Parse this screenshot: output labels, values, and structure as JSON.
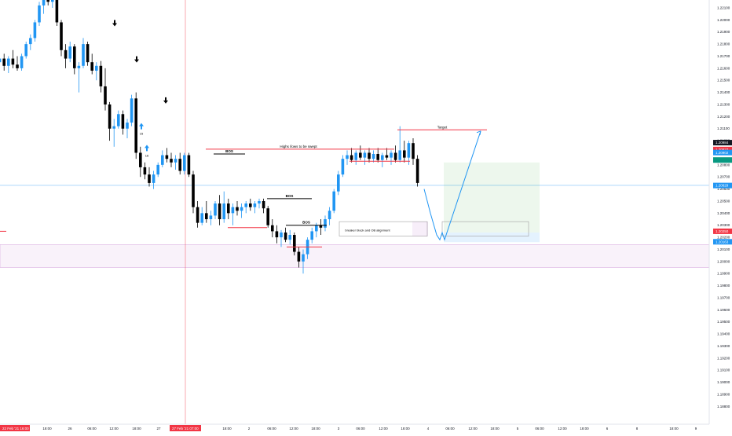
{
  "colors": {
    "up": "#2196f3",
    "down": "#000000",
    "red_line": "#f23645",
    "target_zone": "#4caf50",
    "blue_arrow": "#2196f3",
    "purple_zone": "#9c27b0",
    "blue_hline": "#2196f3",
    "price_tag_red": "#f23645",
    "price_tag_blue": "#2196f3",
    "price_tag_green": "#089981",
    "price_tag_black": "#131722",
    "axis_text": "#131722"
  },
  "chart_data": {
    "type": "candlestick",
    "instrument_note": "",
    "ylim": [
      1.1875,
      1.221
    ],
    "y_ticks": [
      "1.22100",
      "1.22000",
      "1.21900",
      "1.21800",
      "1.21700",
      "1.21600",
      "1.21500",
      "1.21400",
      "1.21300",
      "1.21200",
      "1.21100",
      "1.21000",
      "1.20900",
      "1.20800",
      "1.20700",
      "1.20600",
      "1.20500",
      "1.20400",
      "1.20300",
      "1.20200",
      "1.20100",
      "1.20000",
      "1.19900",
      "1.19800",
      "1.19700",
      "1.19600",
      "1.19500",
      "1.19400",
      "1.19300",
      "1.19200",
      "1.19100",
      "1.19000",
      "1.18900",
      "1.18800"
    ],
    "x_ticks": [
      "22 Feb '21",
      "18:00",
      "26",
      "06:00",
      "12:00",
      "18:00",
      "27",
      "27 Feb '21",
      "18:00",
      "2",
      "06:00",
      "12:00",
      "18:00",
      "3",
      "06:00",
      "12:00",
      "18:00",
      "4",
      "06:00",
      "12:00",
      "18:00",
      "5",
      "06:00",
      "12:00",
      "18:00",
      "6",
      "8",
      "18:00",
      "9"
    ],
    "x_tick_highlight_left": "22 Feb '21",
    "x_tick_highlight_left_time": "16:00",
    "x_tick_highlight_mid": "27 Feb '21",
    "x_tick_highlight_mid_time": "07:00",
    "price_tags": [
      {
        "value": 1.20984,
        "label": "1.20984",
        "color": "black"
      },
      {
        "value": 1.20927,
        "label": "1.20927",
        "color": "red"
      },
      {
        "value": 1.20902,
        "label": "1.20902",
        "color": "blue"
      },
      {
        "value": 1.2084,
        "label": "",
        "color": "green"
      },
      {
        "value": 1.20629,
        "label": "1.20629",
        "color": "blue"
      },
      {
        "value": 1.2025,
        "label": "1.20250",
        "color": "red"
      },
      {
        "value": 1.20163,
        "label": "1.20163",
        "color": "blue"
      }
    ],
    "candles": [
      {
        "o": 1.2155,
        "h": 1.217,
        "l": 1.2145,
        "c": 1.2165
      },
      {
        "o": 1.2165,
        "h": 1.2172,
        "l": 1.216,
        "c": 1.2168
      },
      {
        "o": 1.2168,
        "h": 1.2172,
        "l": 1.2158,
        "c": 1.2162
      },
      {
        "o": 1.2162,
        "h": 1.217,
        "l": 1.2156,
        "c": 1.2168
      },
      {
        "o": 1.2168,
        "h": 1.2175,
        "l": 1.216,
        "c": 1.2163
      },
      {
        "o": 1.2163,
        "h": 1.217,
        "l": 1.2158,
        "c": 1.216
      },
      {
        "o": 1.216,
        "h": 1.2172,
        "l": 1.2158,
        "c": 1.217
      },
      {
        "o": 1.217,
        "h": 1.2182,
        "l": 1.2168,
        "c": 1.218
      },
      {
        "o": 1.218,
        "h": 1.2188,
        "l": 1.2175,
        "c": 1.2185
      },
      {
        "o": 1.2185,
        "h": 1.22,
        "l": 1.2182,
        "c": 1.2198
      },
      {
        "o": 1.2198,
        "h": 1.2215,
        "l": 1.2195,
        "c": 1.2212
      },
      {
        "o": 1.2212,
        "h": 1.2222,
        "l": 1.2205,
        "c": 1.222
      },
      {
        "o": 1.222,
        "h": 1.2228,
        "l": 1.2212,
        "c": 1.2215
      },
      {
        "o": 1.2215,
        "h": 1.2226,
        "l": 1.221,
        "c": 1.2224
      },
      {
        "o": 1.2224,
        "h": 1.2228,
        "l": 1.2195,
        "c": 1.2198
      },
      {
        "o": 1.2198,
        "h": 1.22,
        "l": 1.217,
        "c": 1.2175
      },
      {
        "o": 1.2175,
        "h": 1.218,
        "l": 1.216,
        "c": 1.2168
      },
      {
        "o": 1.2168,
        "h": 1.2182,
        "l": 1.2165,
        "c": 1.2178
      },
      {
        "o": 1.2178,
        "h": 1.218,
        "l": 1.2155,
        "c": 1.216
      },
      {
        "o": 1.216,
        "h": 1.2165,
        "l": 1.214,
        "c": 1.2162
      },
      {
        "o": 1.2162,
        "h": 1.2185,
        "l": 1.216,
        "c": 1.218
      },
      {
        "o": 1.218,
        "h": 1.2182,
        "l": 1.2162,
        "c": 1.2165
      },
      {
        "o": 1.2165,
        "h": 1.2172,
        "l": 1.2155,
        "c": 1.2158
      },
      {
        "o": 1.2158,
        "h": 1.2165,
        "l": 1.215,
        "c": 1.2162
      },
      {
        "o": 1.2162,
        "h": 1.2166,
        "l": 1.214,
        "c": 1.2145
      },
      {
        "o": 1.2145,
        "h": 1.216,
        "l": 1.2125,
        "c": 1.213
      },
      {
        "o": 1.213,
        "h": 1.2132,
        "l": 1.21,
        "c": 1.211
      },
      {
        "o": 1.211,
        "h": 1.2118,
        "l": 1.2095,
        "c": 1.2112
      },
      {
        "o": 1.2112,
        "h": 1.2125,
        "l": 1.211,
        "c": 1.2122
      },
      {
        "o": 1.2122,
        "h": 1.2125,
        "l": 1.2105,
        "c": 1.211
      },
      {
        "o": 1.211,
        "h": 1.2118,
        "l": 1.2102,
        "c": 1.2115
      },
      {
        "o": 1.2115,
        "h": 1.2138,
        "l": 1.2112,
        "c": 1.2135
      },
      {
        "o": 1.2135,
        "h": 1.214,
        "l": 1.2085,
        "c": 1.209
      },
      {
        "o": 1.209,
        "h": 1.2095,
        "l": 1.207,
        "c": 1.2078
      },
      {
        "o": 1.2078,
        "h": 1.2082,
        "l": 1.2068,
        "c": 1.2072
      },
      {
        "o": 1.2072,
        "h": 1.2078,
        "l": 1.2062,
        "c": 1.2065
      },
      {
        "o": 1.2065,
        "h": 1.2075,
        "l": 1.206,
        "c": 1.2072
      },
      {
        "o": 1.2072,
        "h": 1.2082,
        "l": 1.207,
        "c": 1.208
      },
      {
        "o": 1.208,
        "h": 1.2092,
        "l": 1.2078,
        "c": 1.2088
      },
      {
        "o": 1.2088,
        "h": 1.2094,
        "l": 1.2082,
        "c": 1.2085
      },
      {
        "o": 1.2085,
        "h": 1.209,
        "l": 1.2078,
        "c": 1.2082
      },
      {
        "o": 1.2082,
        "h": 1.2088,
        "l": 1.2076,
        "c": 1.2085
      },
      {
        "o": 1.2085,
        "h": 1.209,
        "l": 1.2072,
        "c": 1.2075
      },
      {
        "o": 1.2075,
        "h": 1.209,
        "l": 1.2072,
        "c": 1.2088
      },
      {
        "o": 1.2088,
        "h": 1.209,
        "l": 1.207,
        "c": 1.2072
      },
      {
        "o": 1.2072,
        "h": 1.2075,
        "l": 1.204,
        "c": 1.2045
      },
      {
        "o": 1.2045,
        "h": 1.205,
        "l": 1.2028,
        "c": 1.2032
      },
      {
        "o": 1.2032,
        "h": 1.2045,
        "l": 1.203,
        "c": 1.204
      },
      {
        "o": 1.204,
        "h": 1.205,
        "l": 1.2032,
        "c": 1.2035
      },
      {
        "o": 1.2035,
        "h": 1.2042,
        "l": 1.203,
        "c": 1.2038
      },
      {
        "o": 1.2038,
        "h": 1.205,
        "l": 1.2035,
        "c": 1.2048
      },
      {
        "o": 1.2048,
        "h": 1.2055,
        "l": 1.203,
        "c": 1.2035
      },
      {
        "o": 1.2035,
        "h": 1.2058,
        "l": 1.2032,
        "c": 1.2048
      },
      {
        "o": 1.2048,
        "h": 1.2052,
        "l": 1.2035,
        "c": 1.204
      },
      {
        "o": 1.204,
        "h": 1.2048,
        "l": 1.203,
        "c": 1.2045
      },
      {
        "o": 1.2045,
        "h": 1.205,
        "l": 1.2038,
        "c": 1.2042
      },
      {
        "o": 1.2042,
        "h": 1.2048,
        "l": 1.2036,
        "c": 1.2045
      },
      {
        "o": 1.2045,
        "h": 1.205,
        "l": 1.204,
        "c": 1.2048
      },
      {
        "o": 1.2048,
        "h": 1.2052,
        "l": 1.2042,
        "c": 1.2045
      },
      {
        "o": 1.2045,
        "h": 1.205,
        "l": 1.204,
        "c": 1.2048
      },
      {
        "o": 1.2048,
        "h": 1.2052,
        "l": 1.2044,
        "c": 1.205
      },
      {
        "o": 1.205,
        "h": 1.2052,
        "l": 1.204,
        "c": 1.2044
      },
      {
        "o": 1.2044,
        "h": 1.2046,
        "l": 1.2028,
        "c": 1.203
      },
      {
        "o": 1.203,
        "h": 1.2035,
        "l": 1.202,
        "c": 1.2025
      },
      {
        "o": 1.2025,
        "h": 1.203,
        "l": 1.2015,
        "c": 1.202
      },
      {
        "o": 1.202,
        "h": 1.2026,
        "l": 1.2012,
        "c": 1.2024
      },
      {
        "o": 1.2024,
        "h": 1.2028,
        "l": 1.2016,
        "c": 1.2018
      },
      {
        "o": 1.2018,
        "h": 1.2026,
        "l": 1.2014,
        "c": 1.2022
      },
      {
        "o": 1.2022,
        "h": 1.2024,
        "l": 1.2005,
        "c": 1.2008
      },
      {
        "o": 1.2008,
        "h": 1.2012,
        "l": 1.1995,
        "c": 1.2
      },
      {
        "o": 1.2,
        "h": 1.201,
        "l": 1.199,
        "c": 1.2006
      },
      {
        "o": 1.2006,
        "h": 1.202,
        "l": 1.2002,
        "c": 1.2018
      },
      {
        "o": 1.2018,
        "h": 1.2028,
        "l": 1.2015,
        "c": 1.2025
      },
      {
        "o": 1.2025,
        "h": 1.2032,
        "l": 1.202,
        "c": 1.203
      },
      {
        "o": 1.203,
        "h": 1.2035,
        "l": 1.2022,
        "c": 1.2028
      },
      {
        "o": 1.2028,
        "h": 1.2038,
        "l": 1.2025,
        "c": 1.2035
      },
      {
        "o": 1.2035,
        "h": 1.2045,
        "l": 1.203,
        "c": 1.2042
      },
      {
        "o": 1.2042,
        "h": 1.206,
        "l": 1.204,
        "c": 1.2058
      },
      {
        "o": 1.2058,
        "h": 1.2075,
        "l": 1.2055,
        "c": 1.2072
      },
      {
        "o": 1.2072,
        "h": 1.2088,
        "l": 1.207,
        "c": 1.2085
      },
      {
        "o": 1.2085,
        "h": 1.2092,
        "l": 1.208,
        "c": 1.2088
      },
      {
        "o": 1.2088,
        "h": 1.2094,
        "l": 1.2082,
        "c": 1.2084
      },
      {
        "o": 1.2084,
        "h": 1.2092,
        "l": 1.208,
        "c": 1.209
      },
      {
        "o": 1.209,
        "h": 1.2096,
        "l": 1.2084,
        "c": 1.2086
      },
      {
        "o": 1.2086,
        "h": 1.2092,
        "l": 1.208,
        "c": 1.209
      },
      {
        "o": 1.209,
        "h": 1.2094,
        "l": 1.2082,
        "c": 1.2085
      },
      {
        "o": 1.2085,
        "h": 1.2092,
        "l": 1.2082,
        "c": 1.2089
      },
      {
        "o": 1.2089,
        "h": 1.2094,
        "l": 1.2082,
        "c": 1.2084
      },
      {
        "o": 1.2084,
        "h": 1.209,
        "l": 1.2078,
        "c": 1.2088
      },
      {
        "o": 1.2088,
        "h": 1.2094,
        "l": 1.2084,
        "c": 1.2086
      },
      {
        "o": 1.2086,
        "h": 1.2092,
        "l": 1.208,
        "c": 1.209
      },
      {
        "o": 1.209,
        "h": 1.2096,
        "l": 1.2082,
        "c": 1.2084
      },
      {
        "o": 1.2084,
        "h": 1.2112,
        "l": 1.2082,
        "c": 1.2092
      },
      {
        "o": 1.2092,
        "h": 1.21,
        "l": 1.2082,
        "c": 1.2086
      },
      {
        "o": 1.2086,
        "h": 1.21,
        "l": 1.208,
        "c": 1.2098
      },
      {
        "o": 1.2098,
        "h": 1.2102,
        "l": 1.208,
        "c": 1.2085
      },
      {
        "o": 1.2085,
        "h": 1.2088,
        "l": 1.2062,
        "c": 1.2065
      }
    ],
    "annotations": {
      "highs_lows_label": "Highs /lows to be swept",
      "target_label": "Target",
      "breaker_label": "breaker block and OB alignment",
      "bos_labels": [
        "BOS",
        "BOS",
        "BOS"
      ],
      "arrow_numbers": [
        "15",
        "16"
      ]
    },
    "zones": {
      "purple": [
        1.1995,
        1.2014
      ],
      "green_target": [
        1.2024,
        1.2082
      ],
      "grey_stop": [
        1.2016,
        1.2024
      ],
      "blue_hline": 1.2063,
      "red_hline": 1.2025,
      "target_line": 1.2109,
      "highs_line": 1.2093,
      "breaker_top": 1.2033,
      "breaker_bottom": 1.2021
    },
    "grid": false,
    "legend": "none"
  }
}
